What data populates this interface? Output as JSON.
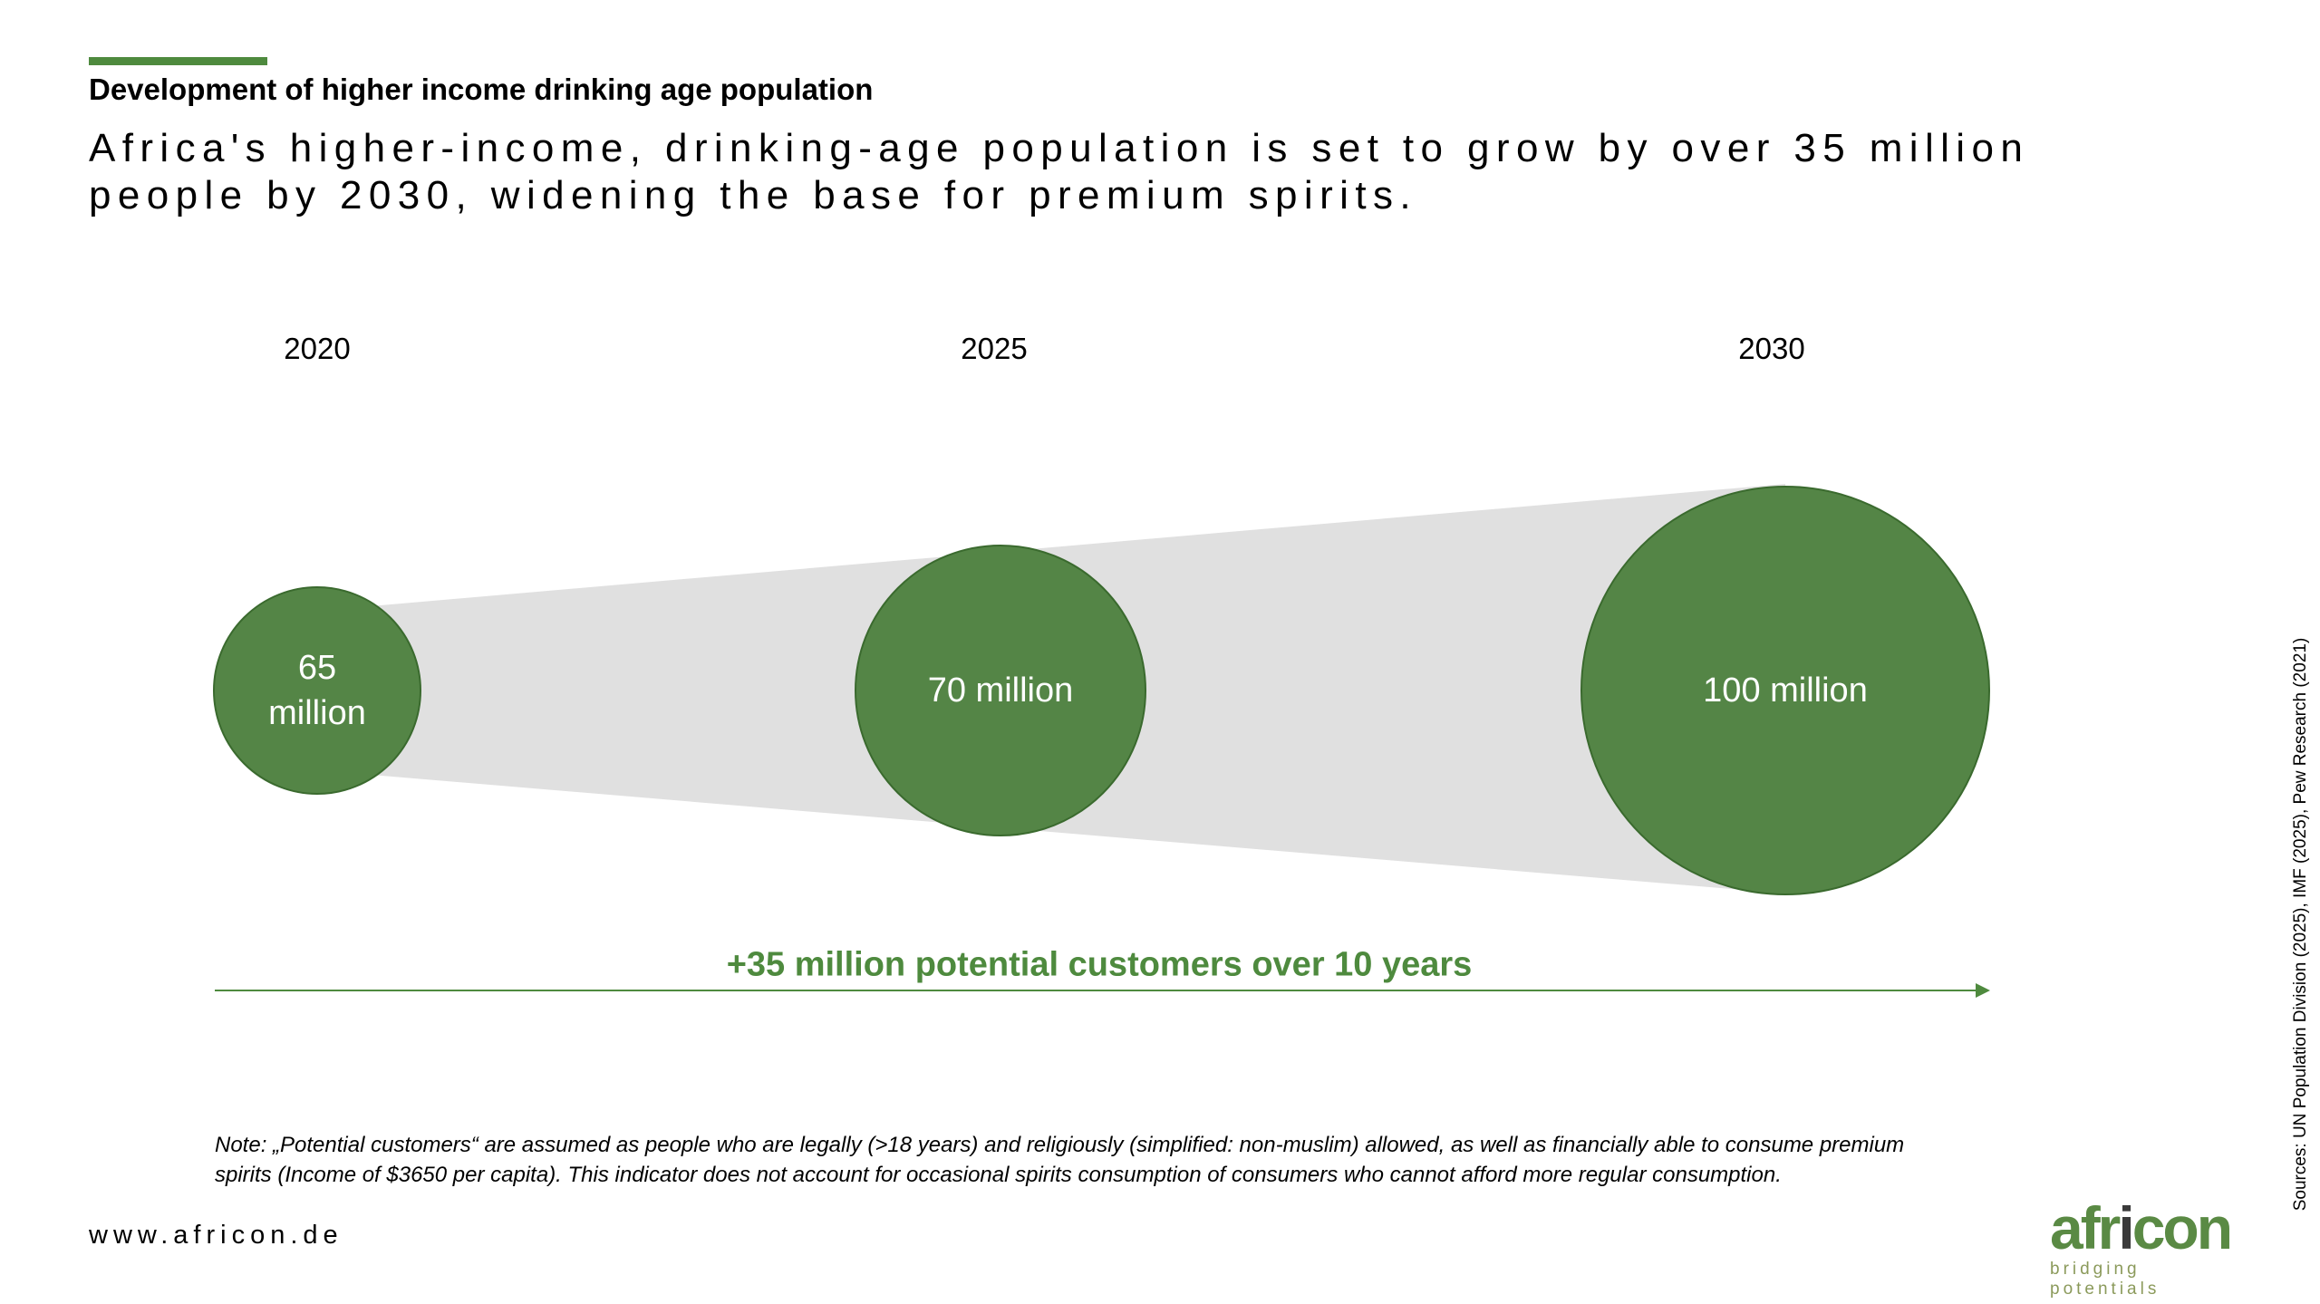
{
  "header": {
    "subtitle": "Development of higher income drinking age population",
    "headline": "Africa's higher-income, drinking-age population is set to grow by over 35 million people by 2030, widening the base for premium spirits."
  },
  "timeline": [
    {
      "year": "2020",
      "label": "65 million",
      "value_millions": 65
    },
    {
      "year": "2025",
      "label": "70 million",
      "value_millions": 70
    },
    {
      "year": "2030",
      "label": "100 million",
      "value_millions": 100
    }
  ],
  "growth": {
    "label": "+35 million potential customers over 10 years"
  },
  "note": "Note: „Potential customers“ are assumed as people who are legally (>18 years) and religiously (simplified: non-muslim) allowed, as well as financially able to consume premium spirits (Income of $3650 per capita). This indicator does not account for occasional spirits consumption of consumers who cannot afford more regular consumption.",
  "footer": {
    "website": "www.africon.de",
    "sources": "Sources: UN Population Division (2025), IMF (2025), Pew Research (2021)",
    "logo_word": "africon",
    "logo_tagline": "bridging potentials"
  },
  "colors": {
    "accent": "#4e8a3e",
    "bubble": "#548546",
    "bubble_border": "#3a6a2e",
    "band": "#e0e0e0"
  }
}
